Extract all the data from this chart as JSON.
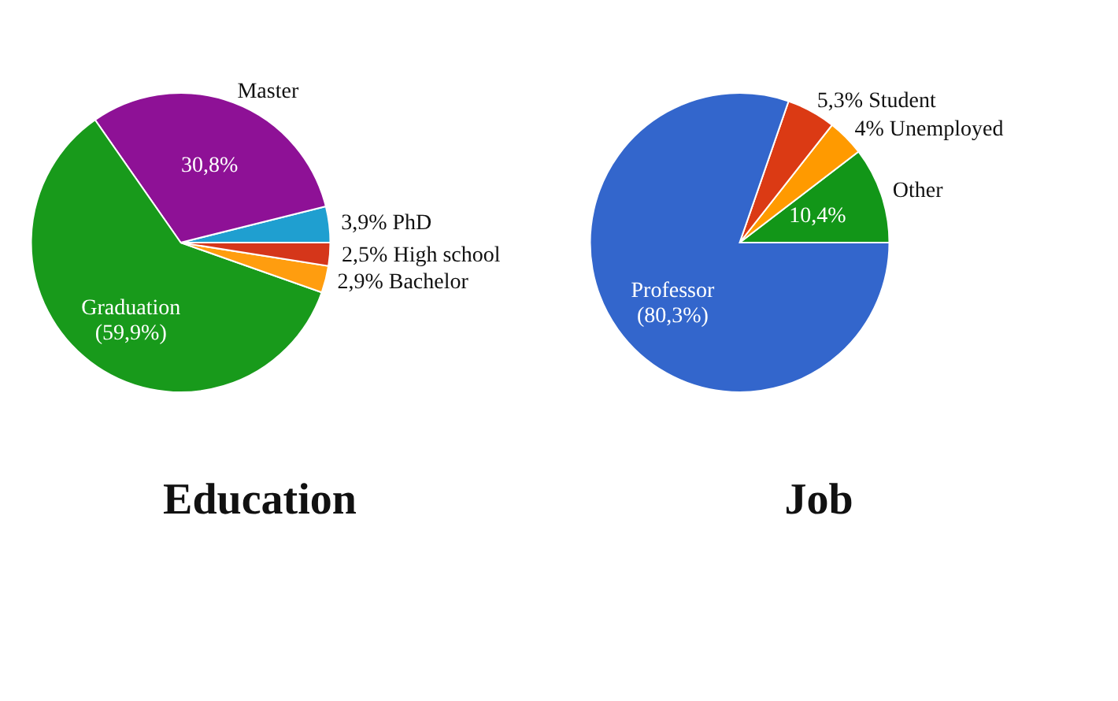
{
  "chart_data": [
    {
      "type": "pie",
      "title": "Education",
      "categories": [
        "PhD",
        "Master",
        "Graduation",
        "Bachelor",
        "High school"
      ],
      "values": [
        3.9,
        30.8,
        59.9,
        2.9,
        2.5
      ],
      "colors": [
        "#1f9fd0",
        "#8e1196",
        "#189a1b",
        "#ff9d0f",
        "#d5361a"
      ],
      "value_labels": [
        "3,9%",
        "30,8%",
        "(59,9%)",
        "2,9%",
        "2,5%"
      ]
    },
    {
      "type": "pie",
      "title": "Job",
      "categories": [
        "Other",
        "Unemployed",
        "Student",
        "Professor"
      ],
      "values": [
        10.4,
        4,
        5.3,
        80.3
      ],
      "colors": [
        "#129618",
        "#ff9a00",
        "#db3a14",
        "#3366cc"
      ],
      "value_labels": [
        "10,4%",
        "4%",
        "5,3%",
        "(80,3%)"
      ]
    }
  ]
}
